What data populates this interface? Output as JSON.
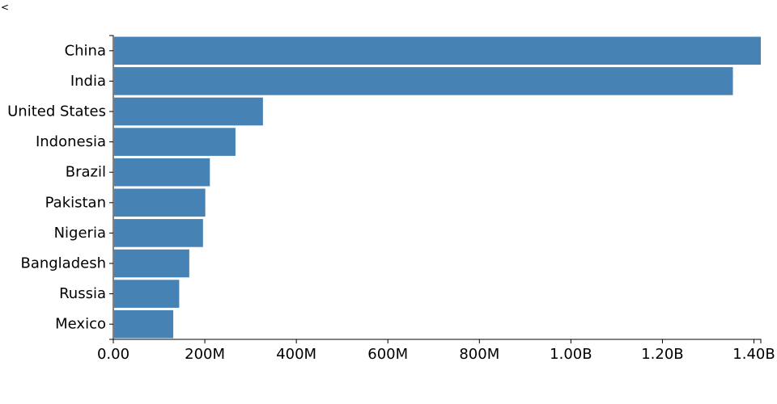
{
  "back_glyph": "<",
  "chart_data": {
    "type": "bar",
    "orientation": "horizontal",
    "categories": [
      "China",
      "India",
      "United States",
      "Indonesia",
      "Brazil",
      "Pakistan",
      "Nigeria",
      "Bangladesh",
      "Russia",
      "Mexico"
    ],
    "values": [
      1415000000,
      1354000000,
      327000000,
      267000000,
      211000000,
      201000000,
      196000000,
      166000000,
      144000000,
      131000000
    ],
    "xlim": [
      0,
      1415000000
    ],
    "x_ticks": [
      0,
      200000000,
      400000000,
      600000000,
      800000000,
      1000000000,
      1200000000,
      1400000000
    ],
    "x_tick_labels": [
      "0.00",
      "200M",
      "400M",
      "600M",
      "800M",
      "1.00B",
      "1.20B",
      "1.40B"
    ],
    "bar_color": "#4682b4",
    "title": "",
    "xlabel": "",
    "ylabel": "",
    "grid": false
  }
}
